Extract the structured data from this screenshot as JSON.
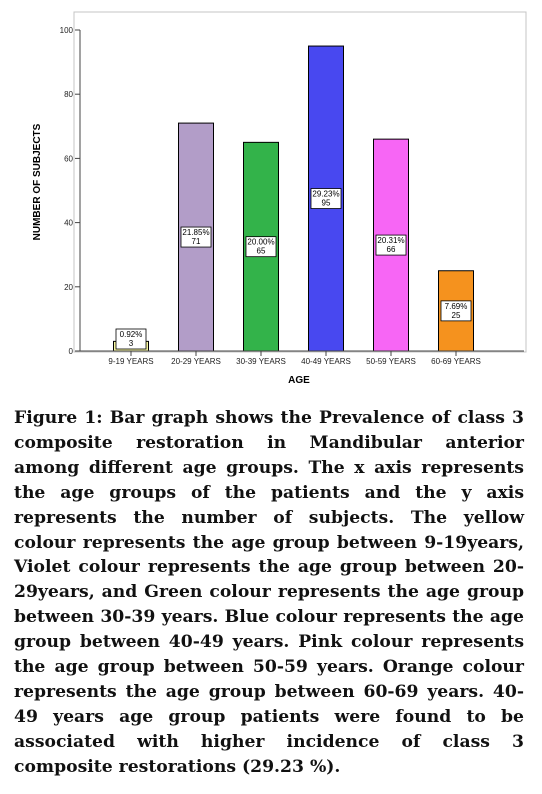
{
  "chart_data": {
    "type": "bar",
    "categories": [
      "9-19 YEARS",
      "20-29 YEARS",
      "30-39 YEARS",
      "40-49 YEARS",
      "50-59 YEARS",
      "60-69 YEARS"
    ],
    "values": [
      3,
      71,
      65,
      95,
      66,
      25
    ],
    "percent_labels": [
      "0.92%",
      "21.85%",
      "20.00%",
      "29.23%",
      "20.31%",
      "7.69%"
    ],
    "colors": [
      "#f5f5a0",
      "#b29dc8",
      "#33b34a",
      "#4848f0",
      "#f766f5",
      "#f5921e"
    ],
    "xlabel": "AGE",
    "ylabel": "NUMBER OF SUBJECTS",
    "ylim": [
      0,
      100
    ],
    "yticks": [
      "0",
      "20",
      "40",
      "60",
      "80",
      "100"
    ],
    "grid": false,
    "frame_color": "#bfbfbf",
    "plot_background": "#ffffff"
  },
  "caption": {
    "label": "Figure 1:",
    "text": "Bar graph shows the Prevalence of class 3 composite restoration in Mandibular anterior among different age groups. The x axis represents the age groups of the patients and the y axis represents the number of subjects. The yellow colour represents the age group between 9-19years, Violet colour represents the age group between 20-29years, and Green colour represents the age group between 30-39 years. Blue colour represents the age group between 40-49 years. Pink colour represents the age group between 50-59 years. Orange colour represents the age group between 60-69 years. 40-49 years age group patients were found to be associated with higher incidence of class 3 composite restorations (29.23 %)."
  }
}
